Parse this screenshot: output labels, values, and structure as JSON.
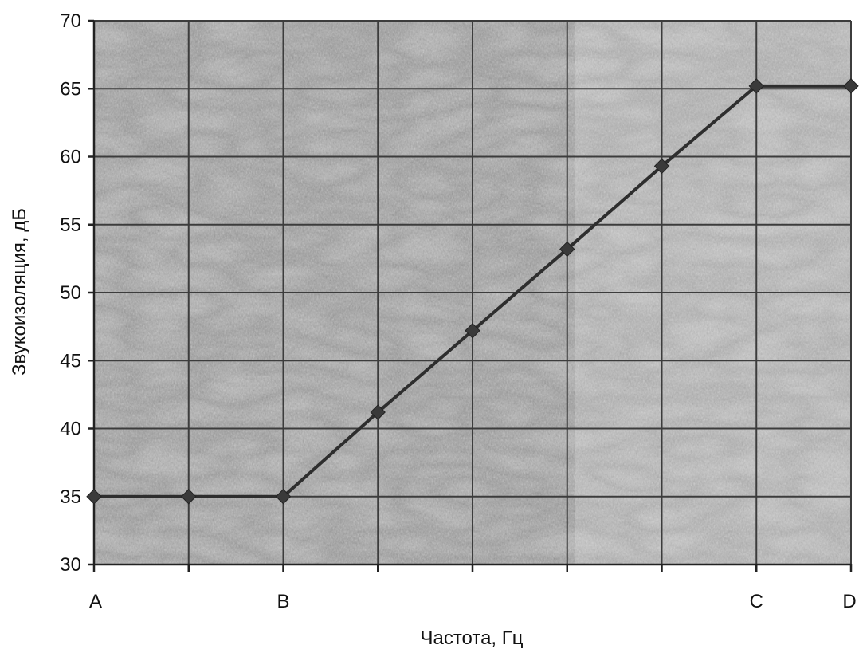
{
  "chart_data": {
    "type": "line",
    "title": "",
    "xlabel": "Частота, Гц",
    "ylabel": "Звукоизоляция, дБ",
    "ylim": [
      30,
      70
    ],
    "yticks": [
      30,
      35,
      40,
      45,
      50,
      55,
      60,
      65,
      70
    ],
    "x_category_count": 9,
    "xtick_labels": [
      {
        "index": 0,
        "label": "A"
      },
      {
        "index": 2,
        "label": "B"
      },
      {
        "index": 7,
        "label": "C"
      },
      {
        "index": 8,
        "label": "D"
      }
    ],
    "grid": true,
    "legend": "none",
    "series": [
      {
        "x": [
          0,
          1,
          2,
          3,
          4,
          5,
          6,
          7,
          8
        ],
        "values": [
          35,
          35,
          35,
          41.2,
          47.2,
          53.2,
          59.3,
          65.2,
          65.2
        ]
      }
    ],
    "colors": {
      "line": "#2e2e2e",
      "marker": "#3a3a3a",
      "plot_background": "#b5b5b5",
      "grid": "#3c3c3c",
      "axis": "#222222"
    }
  }
}
